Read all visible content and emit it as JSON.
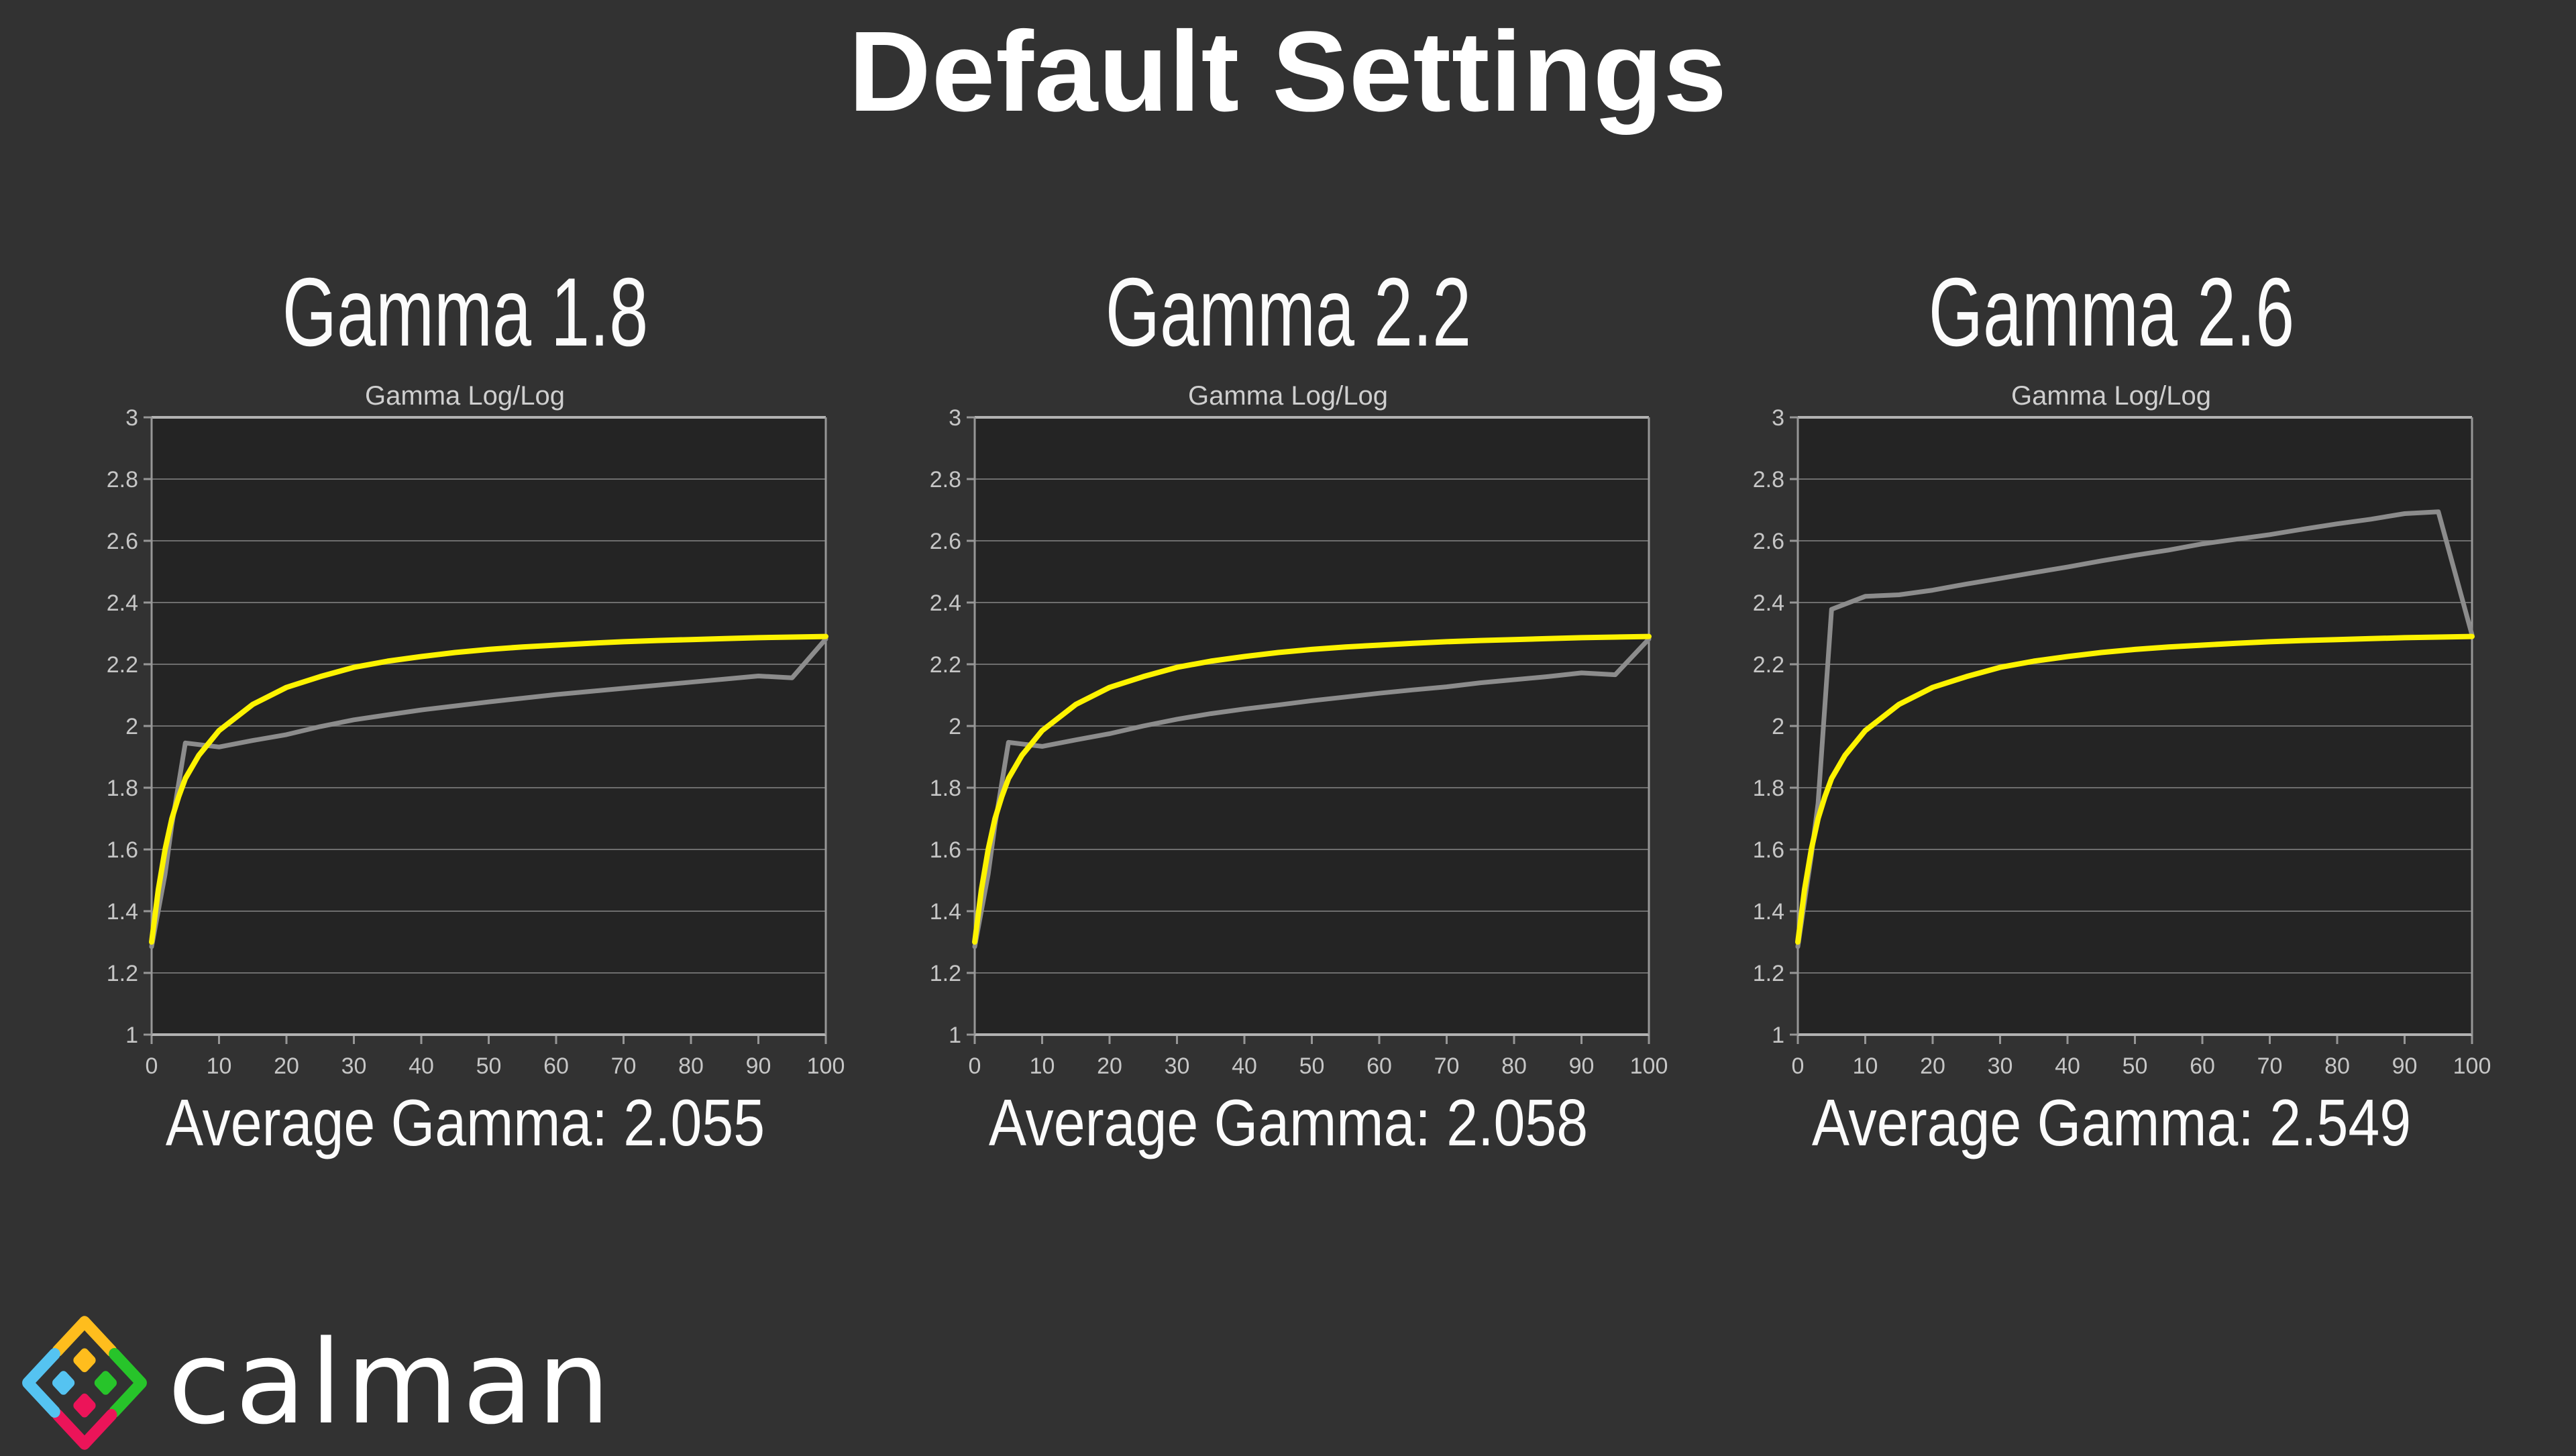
{
  "page": {
    "title": "Default Settings"
  },
  "colors": {
    "background": "#323232",
    "plot_bg": "#242424",
    "grid": "#6e6e6e",
    "axis": "#979797",
    "axis_bright": "#b2b2b2",
    "tick_label": "#c6c6c6",
    "reference_curve": "#fdf300",
    "measured_curve": "#8c8c8c",
    "text": "#ffffff"
  },
  "chart_data": [
    {
      "type": "line",
      "header": "Gamma 1.8",
      "title": "Gamma Log/Log",
      "average_label": "Average Gamma: 2.055",
      "average_gamma": 2.055,
      "xlabel": "",
      "ylabel": "",
      "xlim": [
        0,
        100
      ],
      "ylim": [
        1,
        3
      ],
      "x_ticks": [
        0,
        10,
        20,
        30,
        40,
        50,
        60,
        70,
        80,
        90,
        100
      ],
      "y_ticks": [
        3,
        2.8,
        2.6,
        2.4,
        2.2,
        2,
        1.8,
        1.6,
        1.4,
        1.2,
        1
      ],
      "grid": "horizontal-only",
      "legend": "none",
      "series": [
        {
          "name": "measured",
          "color": "#8c8c8c",
          "width": 7,
          "x": [
            0,
            2,
            3,
            5,
            10,
            15,
            20,
            25,
            30,
            35,
            40,
            45,
            50,
            55,
            60,
            65,
            70,
            75,
            80,
            85,
            90,
            95,
            100
          ],
          "y": [
            1.285,
            1.52,
            1.68,
            1.945,
            1.932,
            1.953,
            1.972,
            1.998,
            2.02,
            2.036,
            2.052,
            2.065,
            2.078,
            2.09,
            2.102,
            2.112,
            2.122,
            2.132,
            2.142,
            2.152,
            2.162,
            2.156,
            2.282
          ]
        },
        {
          "name": "reference",
          "color": "#fdf300",
          "width": 8,
          "x": [
            0,
            1,
            2,
            3,
            4,
            5,
            7,
            10,
            15,
            20,
            25,
            30,
            35,
            40,
            45,
            50,
            55,
            60,
            65,
            70,
            75,
            80,
            85,
            90,
            95,
            100
          ],
          "y": [
            1.3,
            1.47,
            1.6,
            1.7,
            1.77,
            1.83,
            1.905,
            1.985,
            2.07,
            2.125,
            2.16,
            2.19,
            2.21,
            2.225,
            2.238,
            2.248,
            2.256,
            2.262,
            2.268,
            2.273,
            2.277,
            2.28,
            2.283,
            2.286,
            2.288,
            2.29
          ]
        }
      ]
    },
    {
      "type": "line",
      "header": "Gamma 2.2",
      "title": "Gamma Log/Log",
      "average_label": "Average Gamma: 2.058",
      "average_gamma": 2.058,
      "xlabel": "",
      "ylabel": "",
      "xlim": [
        0,
        100
      ],
      "ylim": [
        1,
        3
      ],
      "x_ticks": [
        0,
        10,
        20,
        30,
        40,
        50,
        60,
        70,
        80,
        90,
        100
      ],
      "y_ticks": [
        3,
        2.8,
        2.6,
        2.4,
        2.2,
        2,
        1.8,
        1.6,
        1.4,
        1.2,
        1
      ],
      "grid": "horizontal-only",
      "legend": "none",
      "series": [
        {
          "name": "measured",
          "color": "#8c8c8c",
          "width": 7,
          "x": [
            0,
            2,
            3,
            5,
            10,
            15,
            20,
            25,
            30,
            35,
            40,
            45,
            50,
            55,
            60,
            65,
            70,
            75,
            80,
            85,
            90,
            95,
            100
          ],
          "y": [
            1.285,
            1.52,
            1.68,
            1.947,
            1.934,
            1.955,
            1.975,
            2.0,
            2.022,
            2.04,
            2.055,
            2.068,
            2.082,
            2.094,
            2.106,
            2.117,
            2.127,
            2.14,
            2.15,
            2.16,
            2.172,
            2.166,
            2.282
          ]
        },
        {
          "name": "reference",
          "color": "#fdf300",
          "width": 8,
          "x": [
            0,
            1,
            2,
            3,
            4,
            5,
            7,
            10,
            15,
            20,
            25,
            30,
            35,
            40,
            45,
            50,
            55,
            60,
            65,
            70,
            75,
            80,
            85,
            90,
            95,
            100
          ],
          "y": [
            1.3,
            1.47,
            1.6,
            1.7,
            1.77,
            1.83,
            1.905,
            1.985,
            2.07,
            2.125,
            2.16,
            2.19,
            2.21,
            2.225,
            2.238,
            2.248,
            2.256,
            2.262,
            2.268,
            2.273,
            2.277,
            2.28,
            2.283,
            2.286,
            2.288,
            2.29
          ]
        }
      ]
    },
    {
      "type": "line",
      "header": "Gamma 2.6",
      "title": "Gamma Log/Log",
      "average_label": "Average Gamma: 2.549",
      "average_gamma": 2.549,
      "xlabel": "",
      "ylabel": "",
      "xlim": [
        0,
        100
      ],
      "ylim": [
        1,
        3
      ],
      "x_ticks": [
        0,
        10,
        20,
        30,
        40,
        50,
        60,
        70,
        80,
        90,
        100
      ],
      "y_ticks": [
        3,
        2.8,
        2.6,
        2.4,
        2.2,
        2,
        1.8,
        1.6,
        1.4,
        1.2,
        1
      ],
      "grid": "horizontal-only",
      "legend": "none",
      "series": [
        {
          "name": "measured",
          "color": "#8c8c8c",
          "width": 7,
          "x": [
            0,
            2,
            3,
            5,
            10,
            15,
            20,
            25,
            30,
            35,
            40,
            45,
            50,
            55,
            60,
            65,
            70,
            75,
            80,
            85,
            90,
            95,
            100
          ],
          "y": [
            1.285,
            1.58,
            1.75,
            2.378,
            2.42,
            2.425,
            2.44,
            2.46,
            2.478,
            2.497,
            2.515,
            2.535,
            2.553,
            2.57,
            2.59,
            2.605,
            2.62,
            2.638,
            2.655,
            2.67,
            2.688,
            2.694,
            2.295
          ]
        },
        {
          "name": "reference",
          "color": "#fdf300",
          "width": 8,
          "x": [
            0,
            1,
            2,
            3,
            4,
            5,
            7,
            10,
            15,
            20,
            25,
            30,
            35,
            40,
            45,
            50,
            55,
            60,
            65,
            70,
            75,
            80,
            85,
            90,
            95,
            100
          ],
          "y": [
            1.3,
            1.47,
            1.6,
            1.7,
            1.77,
            1.83,
            1.905,
            1.985,
            2.07,
            2.125,
            2.16,
            2.19,
            2.21,
            2.225,
            2.238,
            2.248,
            2.256,
            2.262,
            2.268,
            2.273,
            2.277,
            2.28,
            2.283,
            2.286,
            2.288,
            2.29
          ]
        }
      ]
    }
  ],
  "logo": {
    "text": "calman",
    "segments": [
      {
        "name": "top",
        "color": "#ffbd1d",
        "angle": 0
      },
      {
        "name": "right",
        "color": "#27c42a",
        "angle": 90
      },
      {
        "name": "bottom",
        "color": "#ec1459",
        "angle": 180
      },
      {
        "name": "left",
        "color": "#55c3f1",
        "angle": 270
      }
    ]
  }
}
